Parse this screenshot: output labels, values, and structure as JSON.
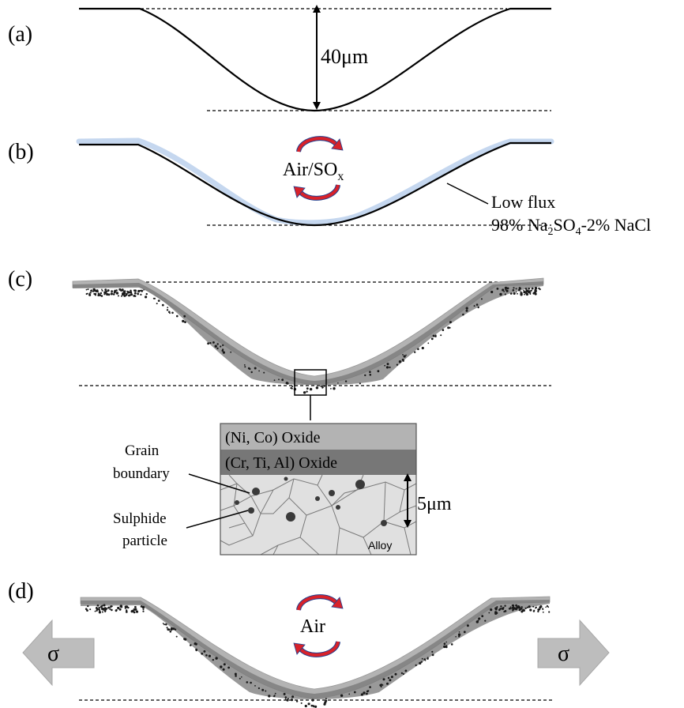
{
  "panels": {
    "a": {
      "label": "(a)",
      "depth_label": "40μm"
    },
    "b": {
      "label": "(b)",
      "atmosphere_main": "Air/SO",
      "atmosphere_sub": "x",
      "flux_line1": "Low flux",
      "flux_line2_parts": [
        "98% Na",
        "2",
        "SO",
        "4",
        "-2% NaCl"
      ]
    },
    "c": {
      "label": "(c)",
      "inset": {
        "outer_oxide": "(Ni, Co) Oxide",
        "inner_oxide": "(Cr, Ti, Al) Oxide",
        "alloy": "Alloy",
        "scale": "5μm",
        "grain_boundary_line1": "Grain",
        "grain_boundary_line2": "boundary",
        "sulphide_line1": "Sulphide",
        "sulphide_line2": "particle"
      }
    },
    "d": {
      "label": "(d)",
      "atmosphere": "Air",
      "stress_left": "σ",
      "stress_right": "σ"
    }
  },
  "colors": {
    "line": "#000000",
    "salt_deposit": "#c5d7ef",
    "outer_oxide": "#b3b3b3",
    "inner_oxide": "#777777",
    "alloy": "#e0e0e0",
    "grain_line": "#7a7a7a",
    "particle": "#3a3a3a",
    "cycle_arrow": "#d8222a",
    "cycle_arrow_edge": "#1f3f8f",
    "stress_arrow": "#bdbdbd"
  }
}
